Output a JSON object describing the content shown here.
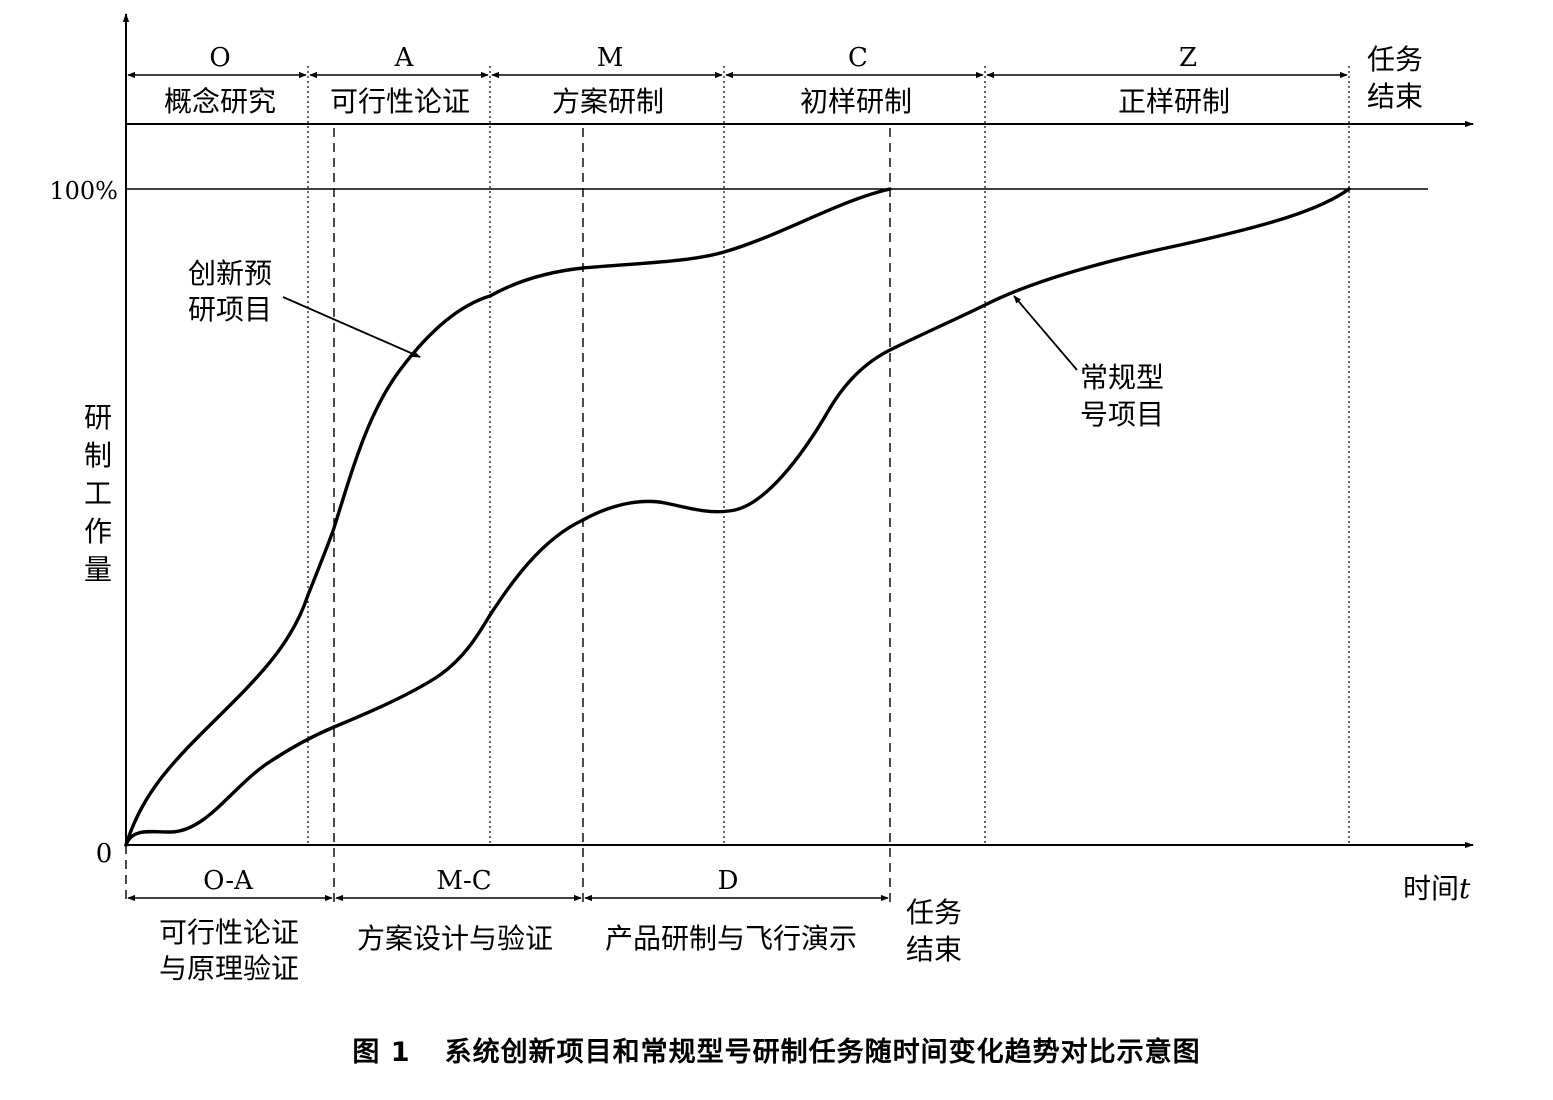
{
  "top_phases": [
    {
      "code": "O",
      "name": "概念研究"
    },
    {
      "code": "A",
      "name": "可行性论证"
    },
    {
      "code": "M",
      "name": "方案研制"
    },
    {
      "code": "C",
      "name": "初样研制"
    },
    {
      "code": "Z",
      "name": "正样研制"
    }
  ],
  "top_end_label": [
    "任务",
    "结束"
  ],
  "bottom_phases": [
    {
      "code": "O-A",
      "name": [
        "可行性论证",
        "与原理验证"
      ]
    },
    {
      "code": "M-C",
      "name": [
        "方案设计与验证"
      ]
    },
    {
      "code": "D",
      "name": [
        "产品研制与飞行演示"
      ]
    }
  ],
  "bottom_end_label": [
    "任务",
    "结束"
  ],
  "y_axis": {
    "label": [
      "研",
      "制",
      "工",
      "作",
      "量"
    ],
    "tick_top": "100%",
    "tick_zero": "0"
  },
  "x_axis": {
    "label_main": "时间",
    "label_var": "t"
  },
  "curves": {
    "innovative": [
      "创新预",
      "研项目"
    ],
    "conventional": [
      "常规型",
      "号项目"
    ]
  },
  "caption": {
    "number": "图 1",
    "text": "系统创新项目和常规型号研制任务随时间变化趋势对比示意图"
  }
}
